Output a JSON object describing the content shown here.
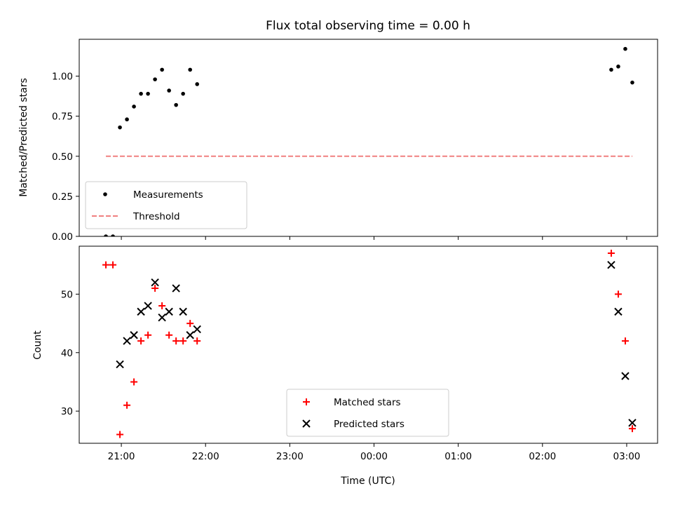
{
  "chart_data": [
    {
      "type": "scatter",
      "title": "Flux total observing time = 0.00 h",
      "xlabel": "",
      "ylabel": "Matched/Predicted stars",
      "ylim": [
        0,
        1.23
      ],
      "yticks": [
        "0.00",
        "0.25",
        "0.50",
        "0.75",
        "1.00"
      ],
      "xticks": [
        "21:00",
        "22:00",
        "23:00",
        "00:00",
        "01:00",
        "02:00",
        "03:00"
      ],
      "xlim": [
        "20:30",
        "03:22"
      ],
      "legend_position": "lower-left",
      "series": [
        {
          "name": "Measurements",
          "kind": "points",
          "color": "#000000",
          "x": [
            "20:49",
            "20:54",
            "20:59",
            "21:04",
            "21:09",
            "21:14",
            "21:19",
            "21:24",
            "21:29",
            "21:34",
            "21:39",
            "21:44",
            "21:49",
            "21:54",
            "02:49",
            "02:54",
            "02:59",
            "03:04"
          ],
          "y": [
            0.0,
            0.0,
            0.68,
            0.73,
            0.81,
            0.89,
            0.89,
            0.98,
            1.04,
            0.91,
            0.82,
            0.89,
            1.04,
            0.95,
            1.04,
            1.06,
            1.17,
            0.96
          ]
        },
        {
          "name": "Threshold",
          "kind": "dashed-line",
          "color": "#f08080",
          "x": [
            "20:49",
            "03:04"
          ],
          "y": [
            0.5,
            0.5
          ]
        }
      ]
    },
    {
      "type": "scatter",
      "title": "",
      "xlabel": "Time (UTC)",
      "ylabel": "Count",
      "ylim": [
        24.5,
        58.2
      ],
      "yticks": [
        "30",
        "40",
        "50"
      ],
      "xticks": [
        "21:00",
        "22:00",
        "23:00",
        "00:00",
        "01:00",
        "02:00",
        "03:00"
      ],
      "xlim": [
        "20:30",
        "03:22"
      ],
      "legend_position": "lower-center",
      "series": [
        {
          "name": "Matched stars",
          "marker": "plus",
          "color": "#ff0000",
          "x": [
            "20:49",
            "20:54",
            "20:59",
            "21:04",
            "21:09",
            "21:14",
            "21:19",
            "21:24",
            "21:29",
            "21:34",
            "21:39",
            "21:44",
            "21:49",
            "21:54",
            "02:49",
            "02:54",
            "02:59",
            "03:04"
          ],
          "y": [
            55,
            55,
            26,
            31,
            35,
            42,
            43,
            51,
            48,
            43,
            42,
            42,
            45,
            42,
            57,
            50,
            42,
            27
          ]
        },
        {
          "name": "Predicted stars",
          "marker": "x",
          "color": "#000000",
          "x": [
            "20:59",
            "21:04",
            "21:09",
            "21:14",
            "21:19",
            "21:24",
            "21:29",
            "21:34",
            "21:39",
            "21:44",
            "21:49",
            "21:54",
            "02:49",
            "02:54",
            "02:59",
            "03:04"
          ],
          "y": [
            38,
            42,
            43,
            47,
            48,
            52,
            46,
            47,
            51,
            47,
            43,
            44,
            55,
            47,
            36,
            28
          ]
        }
      ]
    }
  ]
}
